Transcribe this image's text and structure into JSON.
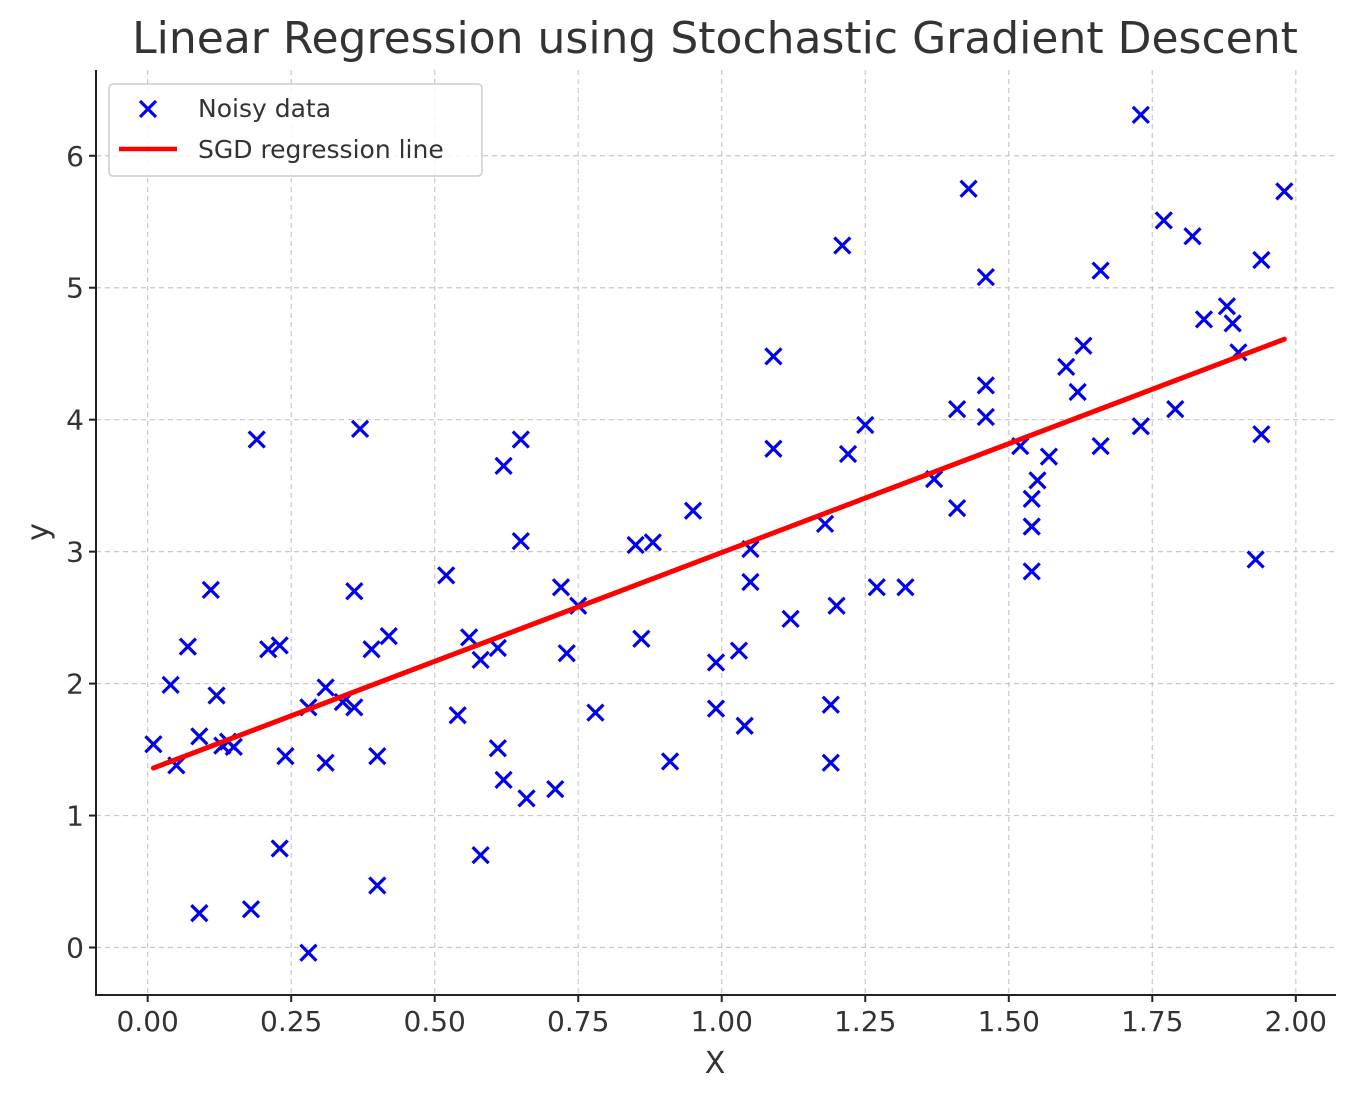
{
  "chart_data": {
    "type": "scatter",
    "title": "Linear Regression using Stochastic Gradient Descent",
    "xlabel": "X",
    "ylabel": "y",
    "xlim": [
      -0.09,
      2.07
    ],
    "ylim": [
      -0.36,
      6.65
    ],
    "xticks": [
      0.0,
      0.25,
      0.5,
      0.75,
      1.0,
      1.25,
      1.5,
      1.75,
      2.0
    ],
    "xtick_labels": [
      "0.00",
      "0.25",
      "0.50",
      "0.75",
      "1.00",
      "1.25",
      "1.50",
      "1.75",
      "2.00"
    ],
    "yticks": [
      0,
      1,
      2,
      3,
      4,
      5,
      6
    ],
    "ytick_labels": [
      "0",
      "1",
      "2",
      "3",
      "4",
      "5",
      "6"
    ],
    "grid": true,
    "legend": {
      "position": "top-left",
      "entries": [
        {
          "label": "Noisy data",
          "marker": "x",
          "color": "#0000ee"
        },
        {
          "label": "SGD regression line",
          "marker": "line",
          "color": "#ff0000"
        }
      ]
    },
    "series": [
      {
        "name": "Noisy data",
        "kind": "scatter",
        "marker": "x",
        "color": "#0000ee",
        "points": [
          [
            0.01,
            1.54
          ],
          [
            0.04,
            1.99
          ],
          [
            0.05,
            1.38
          ],
          [
            0.07,
            2.28
          ],
          [
            0.09,
            0.26
          ],
          [
            0.09,
            1.6
          ],
          [
            0.11,
            2.71
          ],
          [
            0.12,
            1.91
          ],
          [
            0.13,
            1.53
          ],
          [
            0.14,
            1.56
          ],
          [
            0.15,
            1.52
          ],
          [
            0.18,
            0.29
          ],
          [
            0.19,
            3.85
          ],
          [
            0.21,
            2.26
          ],
          [
            0.23,
            2.29
          ],
          [
            0.23,
            0.75
          ],
          [
            0.24,
            1.45
          ],
          [
            0.28,
            1.82
          ],
          [
            0.28,
            -0.04
          ],
          [
            0.31,
            1.97
          ],
          [
            0.31,
            1.4
          ],
          [
            0.34,
            1.86
          ],
          [
            0.36,
            1.82
          ],
          [
            0.36,
            2.7
          ],
          [
            0.37,
            3.93
          ],
          [
            0.39,
            2.26
          ],
          [
            0.4,
            1.45
          ],
          [
            0.4,
            0.47
          ],
          [
            0.42,
            2.36
          ],
          [
            0.52,
            2.82
          ],
          [
            0.54,
            1.76
          ],
          [
            0.56,
            2.35
          ],
          [
            0.58,
            2.18
          ],
          [
            0.58,
            0.7
          ],
          [
            0.61,
            2.27
          ],
          [
            0.61,
            1.51
          ],
          [
            0.62,
            3.65
          ],
          [
            0.62,
            1.27
          ],
          [
            0.65,
            3.85
          ],
          [
            0.65,
            3.08
          ],
          [
            0.66,
            1.13
          ],
          [
            0.71,
            1.2
          ],
          [
            0.72,
            2.73
          ],
          [
            0.73,
            2.23
          ],
          [
            0.75,
            2.59
          ],
          [
            0.78,
            1.78
          ],
          [
            0.85,
            3.05
          ],
          [
            0.86,
            2.34
          ],
          [
            0.88,
            3.07
          ],
          [
            0.91,
            1.41
          ],
          [
            0.95,
            3.31
          ],
          [
            0.99,
            2.16
          ],
          [
            0.99,
            1.81
          ],
          [
            1.03,
            2.25
          ],
          [
            1.04,
            1.68
          ],
          [
            1.05,
            3.02
          ],
          [
            1.05,
            2.77
          ],
          [
            1.09,
            4.48
          ],
          [
            1.09,
            3.78
          ],
          [
            1.12,
            2.49
          ],
          [
            1.18,
            3.21
          ],
          [
            1.19,
            1.84
          ],
          [
            1.19,
            1.4
          ],
          [
            1.2,
            2.59
          ],
          [
            1.21,
            5.32
          ],
          [
            1.22,
            3.74
          ],
          [
            1.25,
            3.96
          ],
          [
            1.27,
            2.73
          ],
          [
            1.32,
            2.73
          ],
          [
            1.37,
            3.55
          ],
          [
            1.41,
            4.08
          ],
          [
            1.41,
            3.33
          ],
          [
            1.43,
            5.75
          ],
          [
            1.46,
            5.08
          ],
          [
            1.46,
            4.26
          ],
          [
            1.46,
            4.02
          ],
          [
            1.52,
            3.8
          ],
          [
            1.54,
            3.4
          ],
          [
            1.54,
            3.19
          ],
          [
            1.54,
            2.85
          ],
          [
            1.55,
            3.54
          ],
          [
            1.57,
            3.72
          ],
          [
            1.6,
            4.4
          ],
          [
            1.62,
            4.21
          ],
          [
            1.63,
            4.56
          ],
          [
            1.66,
            5.13
          ],
          [
            1.66,
            3.8
          ],
          [
            1.73,
            6.31
          ],
          [
            1.73,
            3.95
          ],
          [
            1.77,
            5.51
          ],
          [
            1.79,
            4.08
          ],
          [
            1.82,
            5.39
          ],
          [
            1.84,
            4.76
          ],
          [
            1.88,
            4.86
          ],
          [
            1.89,
            4.73
          ],
          [
            1.9,
            4.51
          ],
          [
            1.93,
            2.94
          ],
          [
            1.94,
            5.21
          ],
          [
            1.94,
            3.89
          ],
          [
            1.98,
            5.73
          ]
        ]
      },
      {
        "name": "SGD regression line",
        "kind": "line",
        "color": "#ff0000",
        "x": [
          0.01,
          1.98
        ],
        "y": [
          1.36,
          4.61
        ]
      }
    ]
  }
}
